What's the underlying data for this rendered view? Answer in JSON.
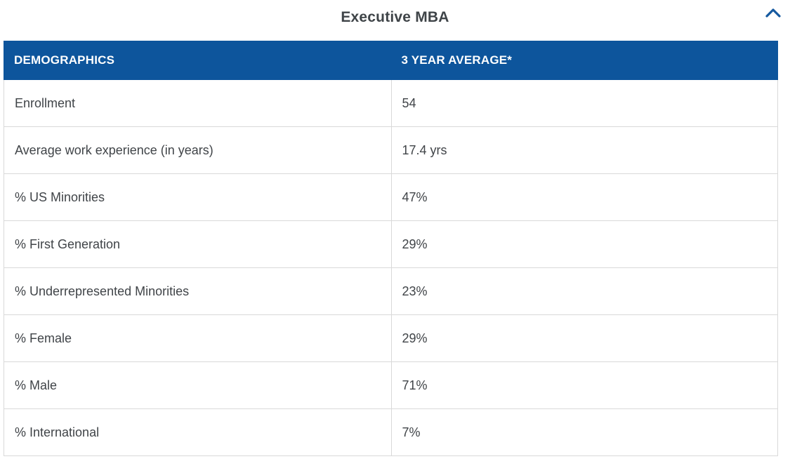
{
  "section": {
    "title": "Executive MBA",
    "collapse_icon": "chevron-up-icon"
  },
  "theme": {
    "header_bg": "#0D559C",
    "header_text": "#FFFFFF",
    "body_text": "#404448",
    "border": "#D9D9D9",
    "title_color": "#3F4448",
    "chevron_color": "#15599F"
  },
  "table": {
    "columns": [
      "DEMOGRAPHICS",
      "3 YEAR AVERAGE*"
    ],
    "rows": [
      {
        "label": "Enrollment",
        "value": "54"
      },
      {
        "label": "Average work experience (in years)",
        "value": "17.4 yrs"
      },
      {
        "label": "% US Minorities",
        "value": "47%"
      },
      {
        "label": "% First Generation",
        "value": "29%"
      },
      {
        "label": "% Underrepresented Minorities",
        "value": "23%"
      },
      {
        "label": "% Female",
        "value": "29%"
      },
      {
        "label": "% Male",
        "value": "71%"
      },
      {
        "label": "% International",
        "value": "7%"
      }
    ]
  }
}
